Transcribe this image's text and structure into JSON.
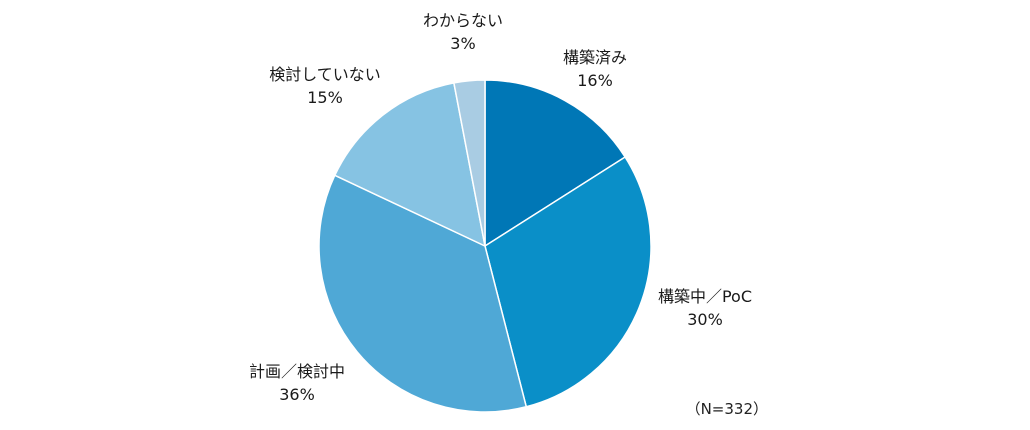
{
  "chart_data": {
    "type": "pie",
    "title": "",
    "start_angle_deg": 0,
    "direction": "clockwise",
    "slices": [
      {
        "label": "構築済み",
        "value": 16,
        "value_label": "16%",
        "color": "#0077B6"
      },
      {
        "label": "構築中／PoC",
        "value": 30,
        "value_label": "30%",
        "color": "#0A8FC8"
      },
      {
        "label": "計画／検討中",
        "value": 36,
        "value_label": "36%",
        "color": "#4FA8D6"
      },
      {
        "label": "検討していない",
        "value": 15,
        "value_label": "15%",
        "color": "#86C3E3"
      },
      {
        "label": "わからない",
        "value": 3,
        "value_label": "3%",
        "color": "#A9CCE3"
      }
    ],
    "note": "（N=332）",
    "legend": "none"
  }
}
